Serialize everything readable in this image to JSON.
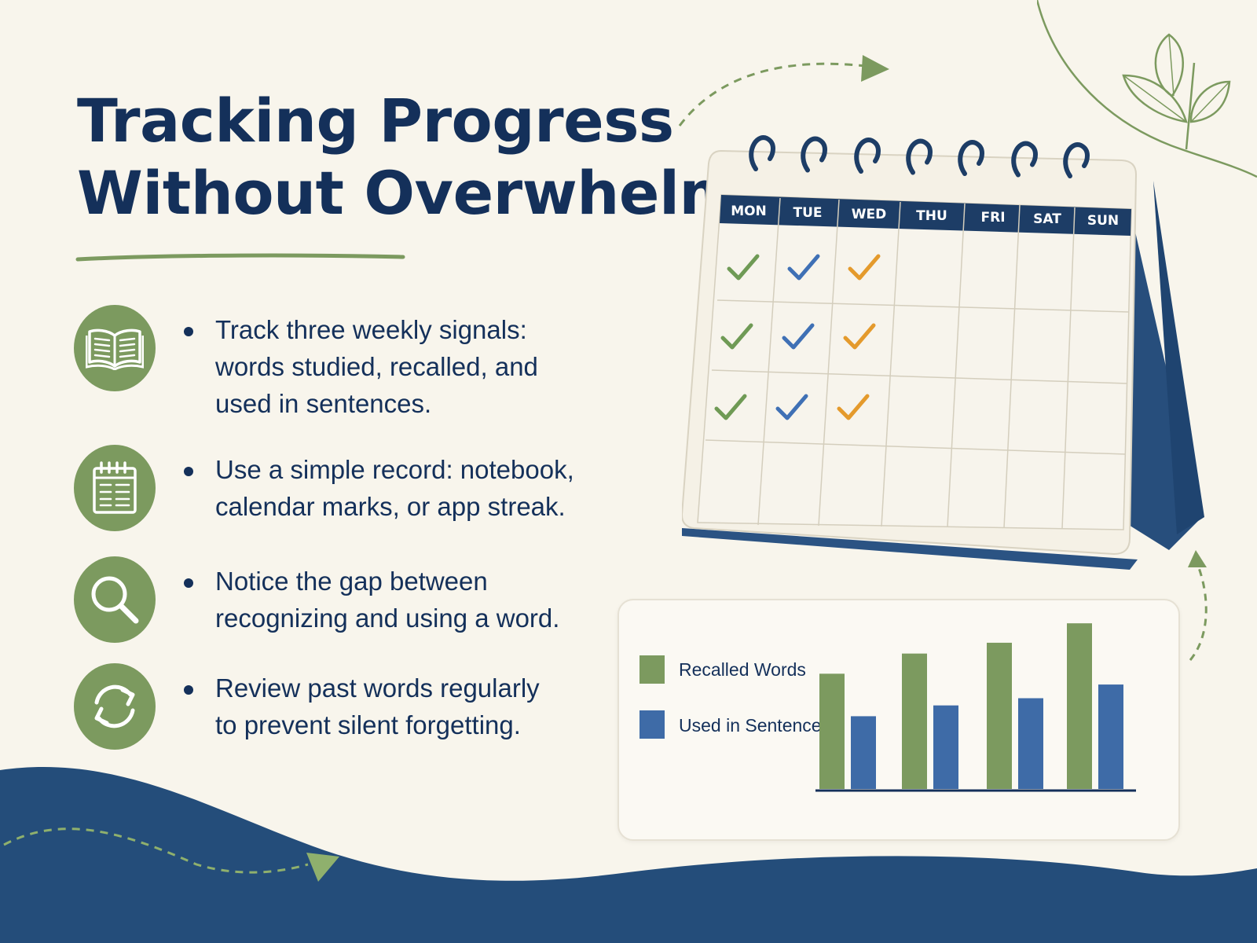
{
  "title": {
    "line1": "Tracking Progress",
    "line2": "Without Overwhelm"
  },
  "bullets": [
    {
      "icon": "open-book-icon",
      "lines": [
        "Track three weekly signals:",
        "words studied, recalled, and",
        "used in sentences."
      ]
    },
    {
      "icon": "notebook-icon",
      "lines": [
        "Use a simple record: notebook,",
        "calendar marks, or app streak."
      ]
    },
    {
      "icon": "magnifier-icon",
      "lines": [
        "Notice the gap between",
        "recognizing and using a word."
      ]
    },
    {
      "icon": "refresh-arrows-icon",
      "lines": [
        "Review past words regularly",
        "to prevent silent forgetting."
      ]
    }
  ],
  "calendar": {
    "days": [
      "MON",
      "TUE",
      "WED",
      "THU",
      "FRI",
      "SAT",
      "SUN"
    ],
    "check_rows": 3,
    "check_colors": [
      "#6f9a55",
      "#3f70b5",
      "#e49a2c"
    ]
  },
  "chart_data": {
    "type": "bar",
    "categories": [
      "",
      "",
      "",
      ""
    ],
    "series": [
      {
        "name": "Recalled Words",
        "color": "#7c9a5f",
        "values": [
          160,
          188,
          203,
          230
        ]
      },
      {
        "name": "Used in Sentences",
        "color": "#3e6ba7",
        "values": [
          101,
          116,
          126,
          145
        ]
      }
    ],
    "ylim": [
      0,
      240
    ],
    "legend_position": "left",
    "grid": false
  },
  "colors": {
    "navy": "#14305a",
    "green": "#7c9a5f",
    "blue": "#3e6ba7",
    "orange": "#e49a2c",
    "wave": "#244d7a",
    "background": "#f8f5ec"
  }
}
